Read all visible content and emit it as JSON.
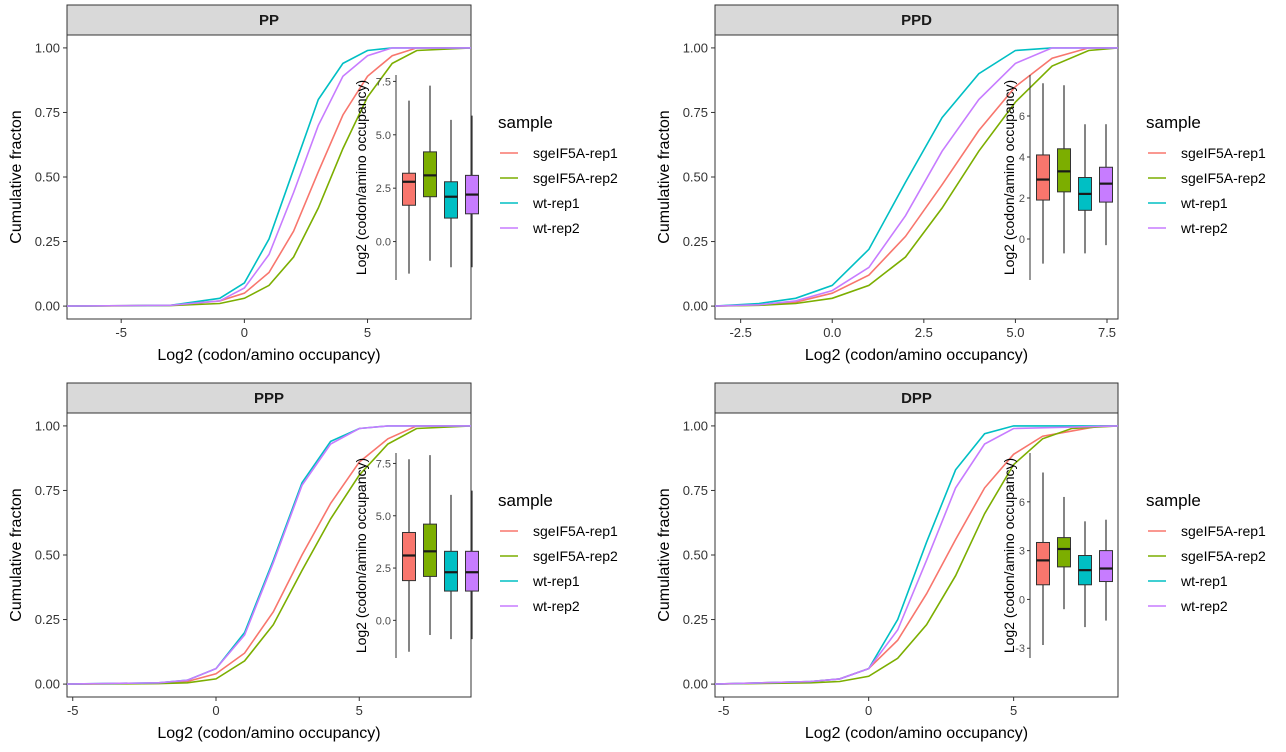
{
  "colors": {
    "sgeIF5A-rep1": "#F8766D",
    "sgeIF5A-rep2": "#7CAE00",
    "wt-rep1": "#00BFC4",
    "wt-rep2": "#C77CFF",
    "strip_fill": "#D9D9D9",
    "border": "#333333"
  },
  "chart_data": [
    {
      "type": "line",
      "title": "PP",
      "xlabel": "Log2 (codon/amino occupancy)",
      "ylabel": "Cumulative fracton",
      "xlim": [
        -7.2,
        9.2
      ],
      "ylim": [
        -0.05,
        1.05
      ],
      "xticks": [
        -5,
        0,
        5
      ],
      "yticks": [
        0,
        0.25,
        0.5,
        0.75,
        1.0
      ],
      "ytick_labels": [
        "0.00",
        "0.25",
        "0.50",
        "0.75",
        "1.00"
      ],
      "series": [
        {
          "name": "sgeIF5A-rep1",
          "x": [
            -7.2,
            -3.0,
            -1.0,
            0.0,
            1.0,
            2.0,
            3.0,
            4.0,
            5.0,
            6.0,
            7.0,
            9.2
          ],
          "y": [
            0,
            0.003,
            0.02,
            0.05,
            0.13,
            0.29,
            0.52,
            0.74,
            0.89,
            0.97,
            1.0,
            1.0
          ]
        },
        {
          "name": "sgeIF5A-rep2",
          "x": [
            -7.2,
            -3.0,
            -1.0,
            0.0,
            1.0,
            2.0,
            3.0,
            4.0,
            5.0,
            6.0,
            7.0,
            9.2
          ],
          "y": [
            0,
            0.002,
            0.01,
            0.03,
            0.08,
            0.19,
            0.38,
            0.61,
            0.81,
            0.94,
            0.99,
            1.0
          ]
        },
        {
          "name": "wt-rep1",
          "x": [
            -7.2,
            -3.0,
            -1.0,
            0.0,
            1.0,
            2.0,
            3.0,
            4.0,
            5.0,
            6.0,
            9.2
          ],
          "y": [
            0,
            0.003,
            0.03,
            0.09,
            0.26,
            0.53,
            0.8,
            0.94,
            0.99,
            1.0,
            1.0
          ]
        },
        {
          "name": "wt-rep2",
          "x": [
            -7.2,
            -3.0,
            -1.0,
            0.0,
            1.0,
            2.0,
            3.0,
            4.0,
            5.0,
            6.0,
            9.2
          ],
          "y": [
            0,
            0.003,
            0.02,
            0.07,
            0.2,
            0.44,
            0.7,
            0.89,
            0.97,
            1.0,
            1.0
          ]
        }
      ],
      "inset": {
        "type": "box",
        "ylabel": "Log2 (codon/amino occupancy)",
        "ylim": [
          -1.8,
          7.8
        ],
        "yticks": [
          0,
          2.5,
          5.0,
          7.5
        ],
        "ytick_labels": [
          "0.0",
          "2.5",
          "5.0",
          "7.5"
        ],
        "boxes": [
          {
            "name": "sgeIF5A-rep1",
            "min": -1.5,
            "q1": 1.7,
            "median": 2.8,
            "q3": 3.2,
            "max": 6.6
          },
          {
            "name": "sgeIF5A-rep2",
            "min": -0.9,
            "q1": 2.1,
            "median": 3.1,
            "q3": 4.2,
            "max": 7.3
          },
          {
            "name": "wt-rep1",
            "min": -1.2,
            "q1": 1.1,
            "median": 2.1,
            "q3": 2.8,
            "max": 5.7
          },
          {
            "name": "wt-rep2",
            "min": -1.2,
            "q1": 1.3,
            "median": 2.2,
            "q3": 3.1,
            "max": 5.9
          }
        ]
      }
    },
    {
      "type": "line",
      "title": "PPD",
      "xlabel": "Log2 (codon/amino occupancy)",
      "ylabel": "Cumulative fracton",
      "xlim": [
        -3.2,
        7.8
      ],
      "ylim": [
        -0.05,
        1.05
      ],
      "xticks": [
        -2.5,
        0.0,
        2.5,
        5.0,
        7.5
      ],
      "xtick_labels": [
        "-2.5",
        "0.0",
        "2.5",
        "5.0",
        "7.5"
      ],
      "yticks": [
        0,
        0.25,
        0.5,
        0.75,
        1.0
      ],
      "ytick_labels": [
        "0.00",
        "0.25",
        "0.50",
        "0.75",
        "1.00"
      ],
      "series": [
        {
          "name": "sgeIF5A-rep1",
          "x": [
            -3.2,
            -2.0,
            -1.0,
            0.0,
            1.0,
            2.0,
            3.0,
            4.0,
            5.0,
            6.0,
            7.0,
            7.8
          ],
          "y": [
            0,
            0.005,
            0.015,
            0.05,
            0.12,
            0.27,
            0.47,
            0.68,
            0.85,
            0.96,
            1.0,
            1.0
          ]
        },
        {
          "name": "sgeIF5A-rep2",
          "x": [
            -3.2,
            -2.0,
            -1.0,
            0.0,
            1.0,
            2.0,
            3.0,
            4.0,
            5.0,
            6.0,
            7.0,
            7.8
          ],
          "y": [
            0,
            0.003,
            0.01,
            0.03,
            0.08,
            0.19,
            0.38,
            0.6,
            0.79,
            0.93,
            0.99,
            1.0
          ]
        },
        {
          "name": "wt-rep1",
          "x": [
            -3.2,
            -2.0,
            -1.0,
            0.0,
            1.0,
            2.0,
            3.0,
            4.0,
            5.0,
            6.0,
            7.8
          ],
          "y": [
            0,
            0.01,
            0.03,
            0.08,
            0.22,
            0.48,
            0.73,
            0.9,
            0.99,
            1.0,
            1.0
          ]
        },
        {
          "name": "wt-rep2",
          "x": [
            -3.2,
            -2.0,
            -1.0,
            0.0,
            1.0,
            2.0,
            3.0,
            4.0,
            5.0,
            6.0,
            7.8
          ],
          "y": [
            0,
            0.005,
            0.02,
            0.06,
            0.15,
            0.35,
            0.6,
            0.8,
            0.94,
            1.0,
            1.0
          ]
        }
      ],
      "inset": {
        "type": "box",
        "ylabel": "Log2 (codon/amino occupancy)",
        "ylim": [
          -2.0,
          8.0
        ],
        "yticks": [
          0,
          2,
          4,
          6
        ],
        "ytick_labels": [
          "0",
          "2",
          "4",
          "6"
        ],
        "boxes": [
          {
            "name": "sgeIF5A-rep1",
            "min": -1.2,
            "q1": 1.9,
            "median": 2.9,
            "q3": 4.1,
            "max": 7.6
          },
          {
            "name": "sgeIF5A-rep2",
            "min": -0.7,
            "q1": 2.3,
            "median": 3.3,
            "q3": 4.4,
            "max": 7.5
          },
          {
            "name": "wt-rep1",
            "min": -0.7,
            "q1": 1.4,
            "median": 2.2,
            "q3": 3.0,
            "max": 5.6
          },
          {
            "name": "wt-rep2",
            "min": -0.3,
            "q1": 1.8,
            "median": 2.7,
            "q3": 3.5,
            "max": 5.6
          }
        ]
      }
    },
    {
      "type": "line",
      "title": "PPP",
      "xlabel": "Log2 (codon/amino occupancy)",
      "ylabel": "Cumulative fracton",
      "xlim": [
        -5.2,
        8.9
      ],
      "ylim": [
        -0.05,
        1.05
      ],
      "xticks": [
        -5,
        0,
        5
      ],
      "yticks": [
        0,
        0.25,
        0.5,
        0.75,
        1.0
      ],
      "ytick_labels": [
        "0.00",
        "0.25",
        "0.50",
        "0.75",
        "1.00"
      ],
      "series": [
        {
          "name": "sgeIF5A-rep1",
          "x": [
            -5.2,
            -2.0,
            -1.0,
            0.0,
            1.0,
            2.0,
            3.0,
            4.0,
            5.0,
            6.0,
            7.0,
            8.9
          ],
          "y": [
            0,
            0.003,
            0.01,
            0.04,
            0.12,
            0.28,
            0.5,
            0.7,
            0.86,
            0.95,
            1.0,
            1.0
          ]
        },
        {
          "name": "sgeIF5A-rep2",
          "x": [
            -5.2,
            -2.0,
            -1.0,
            0.0,
            1.0,
            2.0,
            3.0,
            4.0,
            5.0,
            6.0,
            7.0,
            8.9
          ],
          "y": [
            0,
            0.002,
            0.005,
            0.02,
            0.09,
            0.23,
            0.44,
            0.64,
            0.81,
            0.93,
            0.99,
            1.0
          ]
        },
        {
          "name": "wt-rep1",
          "x": [
            -5.2,
            -2.0,
            -1.0,
            0.0,
            1.0,
            2.0,
            3.0,
            4.0,
            5.0,
            6.0,
            8.9
          ],
          "y": [
            0,
            0.005,
            0.015,
            0.06,
            0.2,
            0.48,
            0.78,
            0.94,
            0.99,
            1.0,
            1.0
          ]
        },
        {
          "name": "wt-rep2",
          "x": [
            -5.2,
            -2.0,
            -1.0,
            0.0,
            1.0,
            2.0,
            3.0,
            4.0,
            5.0,
            6.0,
            8.9
          ],
          "y": [
            0,
            0.005,
            0.015,
            0.06,
            0.19,
            0.47,
            0.77,
            0.93,
            0.99,
            1.0,
            1.0
          ]
        }
      ],
      "inset": {
        "type": "box",
        "ylabel": "Log2 (codon/amino occupancy)",
        "ylim": [
          -1.8,
          8.0
        ],
        "yticks": [
          0,
          2.5,
          5.0,
          7.5
        ],
        "ytick_labels": [
          "0.0",
          "2.5",
          "5.0",
          "7.5"
        ],
        "boxes": [
          {
            "name": "sgeIF5A-rep1",
            "min": -1.5,
            "q1": 1.9,
            "median": 3.1,
            "q3": 4.2,
            "max": 7.7
          },
          {
            "name": "sgeIF5A-rep2",
            "min": -0.7,
            "q1": 2.1,
            "median": 3.3,
            "q3": 4.6,
            "max": 7.9
          },
          {
            "name": "wt-rep1",
            "min": -0.9,
            "q1": 1.4,
            "median": 2.3,
            "q3": 3.3,
            "max": 6.0
          },
          {
            "name": "wt-rep2",
            "min": -0.9,
            "q1": 1.4,
            "median": 2.3,
            "q3": 3.3,
            "max": 6.2
          }
        ]
      }
    },
    {
      "type": "line",
      "title": "DPP",
      "xlabel": "Log2 (codon/amino occupancy)",
      "ylabel": "Cumulative fracton",
      "xlim": [
        -5.3,
        8.6
      ],
      "ylim": [
        -0.05,
        1.05
      ],
      "xticks": [
        -5,
        0,
        5
      ],
      "yticks": [
        0,
        0.25,
        0.5,
        0.75,
        1.0
      ],
      "ytick_labels": [
        "0.00",
        "0.25",
        "0.50",
        "0.75",
        "1.00"
      ],
      "series": [
        {
          "name": "sgeIF5A-rep1",
          "x": [
            -5.3,
            -2.0,
            -1.0,
            0.0,
            1.0,
            2.0,
            3.0,
            4.0,
            5.0,
            6.0,
            7.0,
            8.0,
            8.6
          ],
          "y": [
            0,
            0.01,
            0.02,
            0.06,
            0.17,
            0.35,
            0.56,
            0.76,
            0.89,
            0.96,
            0.98,
            1.0,
            1.0
          ]
        },
        {
          "name": "sgeIF5A-rep2",
          "x": [
            -5.3,
            -2.0,
            -1.0,
            0.0,
            1.0,
            2.0,
            3.0,
            4.0,
            5.0,
            6.0,
            7.0,
            8.6
          ],
          "y": [
            0,
            0.005,
            0.01,
            0.03,
            0.1,
            0.23,
            0.42,
            0.66,
            0.85,
            0.95,
            0.99,
            1.0
          ]
        },
        {
          "name": "wt-rep1",
          "x": [
            -5.3,
            -2.0,
            -1.0,
            0.0,
            1.0,
            2.0,
            3.0,
            4.0,
            5.0,
            8.6
          ],
          "y": [
            0,
            0.01,
            0.02,
            0.06,
            0.25,
            0.55,
            0.83,
            0.97,
            1.0,
            1.0
          ]
        },
        {
          "name": "wt-rep2",
          "x": [
            -5.3,
            -2.0,
            -1.0,
            0.0,
            1.0,
            2.0,
            3.0,
            4.0,
            5.0,
            8.6
          ],
          "y": [
            0,
            0.01,
            0.02,
            0.06,
            0.21,
            0.48,
            0.76,
            0.93,
            0.99,
            1.0
          ]
        }
      ],
      "inset": {
        "type": "box",
        "ylabel": "Log2 (codon/amino occupancy)",
        "ylim": [
          -3.6,
          9.0
        ],
        "yticks": [
          -3,
          0,
          3,
          6
        ],
        "ytick_labels": [
          "-3",
          "0",
          "3",
          "6"
        ],
        "boxes": [
          {
            "name": "sgeIF5A-rep1",
            "min": -2.8,
            "q1": 0.9,
            "median": 2.4,
            "q3": 3.5,
            "max": 7.8
          },
          {
            "name": "sgeIF5A-rep2",
            "min": -0.6,
            "q1": 2.0,
            "median": 3.1,
            "q3": 3.8,
            "max": 6.3
          },
          {
            "name": "wt-rep1",
            "min": -1.7,
            "q1": 0.9,
            "median": 1.8,
            "q3": 2.7,
            "max": 4.8
          },
          {
            "name": "wt-rep2",
            "min": -1.3,
            "q1": 1.1,
            "median": 1.9,
            "q3": 3.0,
            "max": 4.9
          }
        ]
      }
    }
  ],
  "legend": {
    "title": "sample",
    "items": [
      "sgeIF5A-rep1",
      "sgeIF5A-rep2",
      "wt-rep1",
      "wt-rep2"
    ]
  }
}
